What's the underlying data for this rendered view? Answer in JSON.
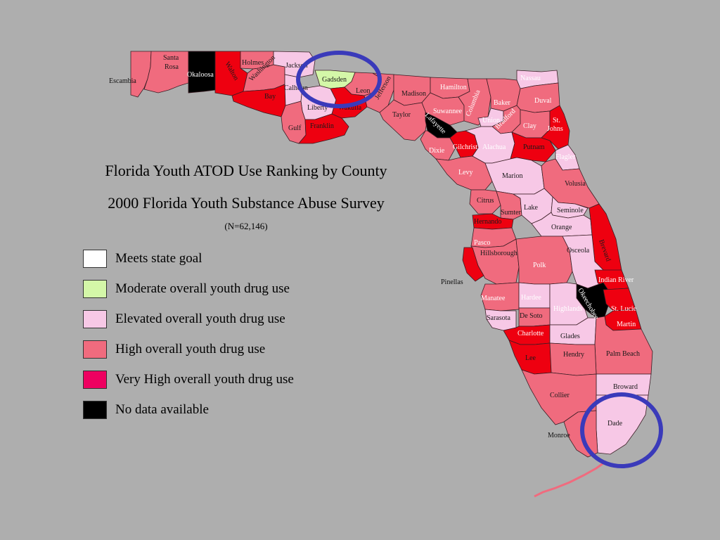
{
  "title": "Florida Youth ATOD Use Ranking by County",
  "subtitle": "2000 Florida Youth Substance Abuse Survey",
  "sample": "(N=62,146)",
  "colors": {
    "background": "#aeaeae",
    "meets": "#ffffff",
    "moderate": "#d4f7a8",
    "elevated": "#f7c8e6",
    "high": "#f06b7e",
    "very_high": "#ee0060",
    "red": "#ee0010",
    "no_data": "#000000",
    "highlight_circle": "#3a3aba"
  },
  "legend": [
    {
      "label": "Meets state goal",
      "color": "#ffffff"
    },
    {
      "label": "Moderate overall youth drug use",
      "color": "#d4f7a8"
    },
    {
      "label": "Elevated overall youth drug use",
      "color": "#f7c8e6"
    },
    {
      "label": "High overall youth drug use",
      "color": "#f06b7e"
    },
    {
      "label": "Very High overall youth drug use",
      "color": "#ee0060"
    },
    {
      "label": "No data available",
      "color": "#000000"
    }
  ],
  "counties": {
    "escambia": "Escambia",
    "santa_rosa_1": "Santa",
    "santa_rosa_2": "Rosa",
    "okaloosa": "Okaloosa",
    "walton": "Walton",
    "holmes": "Holmes",
    "washington": "Washington",
    "jackson": "Jackson",
    "bay": "Bay",
    "calhoun": "Calhoun",
    "gadsden": "Gadsden",
    "leon": "Leon",
    "liberty": "Liberty",
    "gulf": "Gulf",
    "franklin": "Franklin",
    "wakulla": "Wakulla",
    "jefferson": "Jefferson",
    "madison": "Madison",
    "taylor": "Taylor",
    "hamilton": "Hamilton",
    "suwannee": "Suwannee",
    "columbia": "Columbia",
    "lafayette": "Lafayette",
    "nassau": "Nassau",
    "duval": "Duval",
    "baker": "Baker",
    "union": "Union",
    "bradford": "Bradford",
    "clay": "Clay",
    "st_johns_1": "St.",
    "st_johns_2": "Johns",
    "dixie": "Dixie",
    "gilchrist": "Gilchrist",
    "alachua": "Alachua",
    "putnam": "Putnam",
    "flagler": "Flagler",
    "levy": "Levy",
    "marion": "Marion",
    "volusia": "Volusia",
    "citrus": "Citrus",
    "lake": "Lake",
    "seminole": "Seminole",
    "sumter": "Sumter",
    "hernando": "Hernando",
    "orange": "Orange",
    "pasco": "Pasco",
    "brevard": "Brevard",
    "hillsborough": "Hillsborough",
    "osceola": "Osceola",
    "polk": "Polk",
    "pinellas": "Pinellas",
    "indian_river": "Indian River",
    "okeechobee": "Okeechobee",
    "manatee": "Manatee",
    "hardee": "Hardee",
    "st_lucie": "St. Lucie",
    "highlands": "Highlands",
    "de_soto": "De Soto",
    "sarasota": "Sarasota",
    "martin": "Martin",
    "charlotte": "Charlotte",
    "glades": "Glades",
    "palm_beach": "Palm Beach",
    "lee": "Lee",
    "hendry": "Hendry",
    "broward": "Broward",
    "collier": "Collier",
    "dade": "Dade",
    "monroe": "Monroe"
  }
}
